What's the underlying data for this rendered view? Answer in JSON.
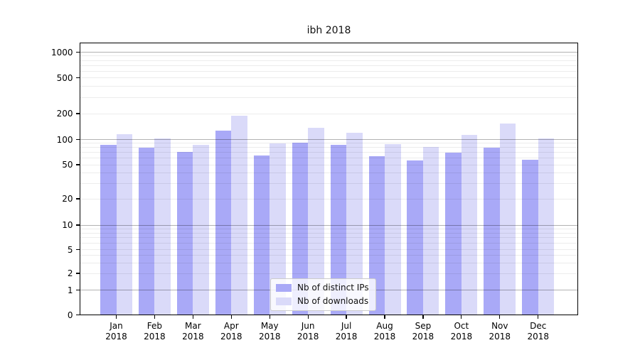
{
  "title": "ibh 2018",
  "chart_data": {
    "type": "bar",
    "title": "ibh 2018",
    "categories": [
      "Jan",
      "Feb",
      "Mar",
      "Apr",
      "May",
      "Jun",
      "Jul",
      "Aug",
      "Sep",
      "Oct",
      "Nov",
      "Dec"
    ],
    "year": "2018",
    "series": [
      {
        "name": "Nb of distinct IPs",
        "color": "#a9a9f7",
        "values": [
          88,
          81,
          72,
          128,
          65,
          92,
          88,
          64,
          57,
          71,
          80,
          58
        ]
      },
      {
        "name": "Nb of downloads",
        "color": "#dadaf9",
        "values": [
          117,
          103,
          88,
          191,
          90,
          139,
          120,
          89,
          83,
          115,
          155,
          103
        ]
      }
    ],
    "yscale": "symlog",
    "yticks": [
      0,
      1,
      2,
      5,
      10,
      20,
      50,
      100,
      200,
      500,
      1000
    ],
    "ytick_labels": [
      "0",
      "1",
      "2",
      "5",
      "10",
      "20",
      "50",
      "100",
      "200",
      "500",
      "1000"
    ],
    "ylim": [
      0,
      1400
    ],
    "xlabel": "",
    "ylabel": "",
    "grid": "horizontal log major+minor",
    "legend_position": "lower center"
  },
  "legend": {
    "items": [
      {
        "label": "Nb of distinct IPs",
        "color": "#a9a9f7"
      },
      {
        "label": "Nb of downloads",
        "color": "#dadaf9"
      }
    ]
  }
}
